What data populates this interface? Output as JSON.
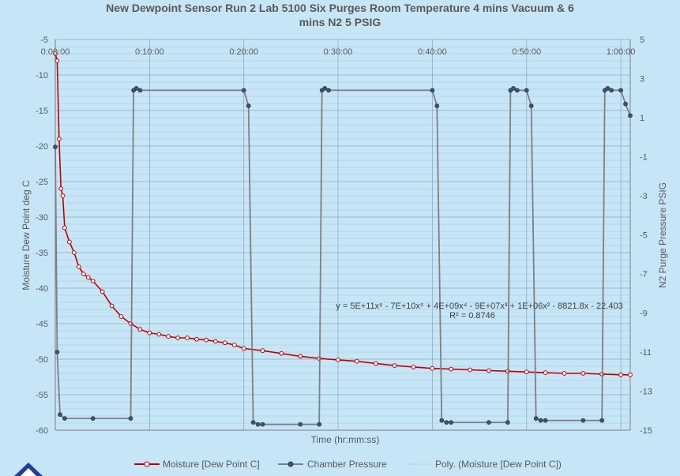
{
  "chart_title": {
    "line1": "New Dewpoint Sensor Run 2 Lab 5100 Six Purges Room Temperature 4 mins Vacuum & 6",
    "line2": "mins N2 5 PSIG"
  },
  "chart_data": {
    "type": "line",
    "title": "New Dewpoint Sensor Run 2 Lab 5100 Six Purges Room Temperature 4 mins Vacuum & 6 mins N2 5 PSIG",
    "xlabel": "Time  (hr:mm:ss)",
    "ylabel": "Moisture Dew Point deg C",
    "y2label": "N2 Purge Pressure PSIG",
    "xlim_minutes": [
      0,
      61
    ],
    "ylim": [
      -60,
      -5
    ],
    "y2lim": [
      -15,
      5
    ],
    "x_ticks": [
      "0:00:00",
      "0:10:00",
      "0:20:00",
      "0:30:00",
      "0:40:00",
      "0:50:00",
      "1:00:00"
    ],
    "y_ticks": [
      "-5",
      "-10",
      "-15",
      "-20",
      "-25",
      "-30",
      "-35",
      "-40",
      "-45",
      "-50",
      "-55",
      "-60"
    ],
    "y2_ticks": [
      "5",
      "3",
      "1",
      "-1",
      "-3",
      "-5",
      "-7",
      "-9",
      "-11",
      "-13",
      "-15"
    ],
    "trendline": {
      "equation": "y = 5E+11x⁶ - 7E+10x⁵ + 4E+09x⁴ - 9E+07x³ + 1E+06x² - 8821.8x - 22.403",
      "r_squared": "R² = 0.8746"
    },
    "legend": [
      "Moisture [Dew Point C]",
      "Chamber Pressure",
      "Poly. (Moisture [Dew Point C])"
    ],
    "legend_position": "bottom",
    "grid": true,
    "series": [
      {
        "name": "Moisture [Dew Point C]",
        "axis": "left",
        "color": "#c00000",
        "x": [
          0,
          0.2,
          0.4,
          0.6,
          0.8,
          1,
          1.5,
          2,
          2.5,
          3,
          3.5,
          4,
          5,
          6,
          7,
          8,
          9,
          10,
          11,
          12,
          13,
          14,
          15,
          16,
          17,
          18,
          19,
          20,
          22,
          24,
          26,
          28,
          30,
          32,
          34,
          36,
          38,
          40,
          42,
          44,
          46,
          48,
          50,
          52,
          54,
          56,
          58,
          60,
          61
        ],
        "y": [
          -7,
          -8,
          -19,
          -26,
          -27,
          -31.5,
          -33.5,
          -35,
          -37,
          -38,
          -38.5,
          -39,
          -40.5,
          -42.5,
          -44,
          -45,
          -45.8,
          -46.3,
          -46.5,
          -46.8,
          -47,
          -47,
          -47.2,
          -47.3,
          -47.5,
          -47.7,
          -48,
          -48.5,
          -48.8,
          -49.2,
          -49.6,
          -49.9,
          -50.1,
          -50.3,
          -50.6,
          -50.9,
          -51.1,
          -51.3,
          -51.4,
          -51.5,
          -51.6,
          -51.7,
          -51.8,
          -51.9,
          -52,
          -52,
          -52.1,
          -52.2,
          -52.2
        ]
      },
      {
        "name": "Chamber Pressure",
        "axis": "right",
        "color": "#44546a",
        "x": [
          0,
          0.2,
          0.5,
          1,
          4,
          8,
          8.3,
          8.6,
          9,
          20,
          20.5,
          21,
          21.5,
          22,
          26,
          28,
          28.3,
          28.6,
          29,
          40,
          40.5,
          41,
          41.5,
          42,
          46,
          48,
          48.3,
          48.6,
          49,
          50,
          50.5,
          51,
          51.5,
          52,
          56,
          58,
          58.3,
          58.6,
          59,
          60,
          60.5,
          61
        ],
        "y": [
          -0.5,
          -11,
          -14.2,
          -14.4,
          -14.4,
          -14.4,
          2.4,
          2.5,
          2.4,
          2.4,
          1.6,
          -14.6,
          -14.7,
          -14.7,
          -14.7,
          -14.7,
          2.4,
          2.5,
          2.4,
          2.4,
          1.6,
          -14.5,
          -14.6,
          -14.6,
          -14.6,
          -14.6,
          2.4,
          2.5,
          2.4,
          2.4,
          1.6,
          -14.4,
          -14.5,
          -14.5,
          -14.5,
          -14.5,
          2.4,
          2.5,
          2.4,
          2.4,
          1.7,
          1.1
        ]
      }
    ]
  }
}
